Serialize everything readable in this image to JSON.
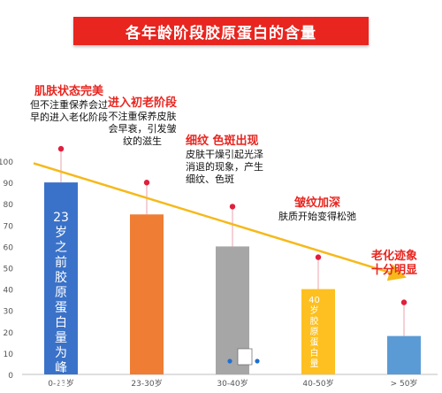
{
  "chart_data": {
    "type": "bar",
    "title": "各年龄阶段胶原蛋白的含量",
    "categories": [
      "0-23岁",
      "23-30岁",
      "30-40岁",
      "40-50岁",
      "> 50岁"
    ],
    "values": [
      90,
      75,
      60,
      40,
      18
    ],
    "ylim": [
      0,
      100
    ],
    "yticks": [
      0,
      10,
      20,
      30,
      40,
      50,
      60,
      70,
      80,
      90,
      100
    ],
    "grid": false,
    "bar_colors": [
      "#3a72c9",
      "#ef7d34",
      "#a6a6a6",
      "#fdc020",
      "#5b9bd5"
    ],
    "trend_color": "#f6b91a",
    "marker_color": "#e01f3d",
    "annotations": [
      {
        "head": "肌肤状态完美",
        "body": "但不注重保养会过早的进入老化阶段"
      },
      {
        "head": "进入初老阶段",
        "body": "不注重保养皮肤会早衰，引发皱纹的滋生"
      },
      {
        "head": "细纹 色斑出现",
        "body": "皮肤干燥引起光泽消退的现象，产生细纹、色斑"
      },
      {
        "head": "皱纹加深",
        "body": "肤质开始变得松弛"
      },
      {
        "head": "老化迹象十分明显",
        "body": ""
      }
    ],
    "bar_labels": [
      "23岁之前胶原蛋白量为峰值",
      "",
      "",
      "40岁胶原蛋白量",
      ""
    ]
  }
}
